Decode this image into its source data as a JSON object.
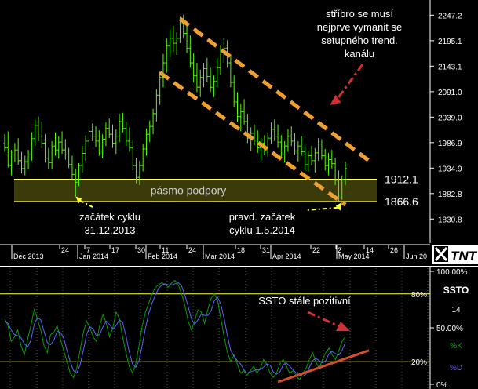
{
  "chart_data": [
    {
      "type": "ohlc",
      "title": "",
      "xlabel": "",
      "ylabel": "",
      "y_ticks": [
        2247.2,
        2195.1,
        2143.1,
        2091.0,
        2039.0,
        1986.9,
        1934.9,
        1882.8,
        1830.8
      ],
      "y_tick_labels": [
        "2247.2",
        "2195.1",
        "2143.1",
        "2091.0",
        "2039.0",
        "1986.9",
        "1934.9",
        "1882.8",
        "1830.8"
      ],
      "ylim": [
        1804,
        2275
      ],
      "x_tick_labels": [
        "Dec 2013",
        "24",
        "7",
        "Jan 2014",
        "17",
        "30",
        "Feb 2014",
        "11",
        "24",
        "Mar 2014",
        "18",
        "31",
        "Apr 2014",
        "22",
        "2",
        "May 2014",
        "14",
        "26",
        "Jun 20"
      ],
      "support_band": {
        "label": "pásmo podpory",
        "upper": 1912.1,
        "lower": 1866.6,
        "upper_label": "1912.1",
        "lower_label": "1866.6"
      },
      "channel": {
        "upper": {
          "start": {
            "bar": 52,
            "value": 2240
          },
          "end": {
            "bar": 108,
            "value": 1950
          }
        },
        "lower": {
          "start": {
            "bar": 46,
            "value": 2130
          },
          "end": {
            "bar": 101,
            "value": 1860
          }
        }
      },
      "annotations": [
        {
          "text": [
            "stříbro se musí",
            "nejprve vymanit se",
            "setupného trend.",
            "kanálu"
          ],
          "target_bar": 96,
          "target_value": 2067
        },
        {
          "text": [
            "začátek cyklu",
            "31.12.2013"
          ],
          "target_bar": 21,
          "target_value": 1877
        },
        {
          "text": [
            "pravd. začátek",
            "cyklu 1.5.2014"
          ],
          "target_bar": 100,
          "target_value": 1862
        }
      ],
      "bars": [
        {
          "o": 1985,
          "h": 2004,
          "l": 1968,
          "c": 1976
        },
        {
          "o": 1976,
          "h": 2010,
          "l": 1936,
          "c": 1940
        },
        {
          "o": 1940,
          "h": 1972,
          "l": 1920,
          "c": 1962
        },
        {
          "o": 1962,
          "h": 1986,
          "l": 1948,
          "c": 1972
        },
        {
          "o": 1972,
          "h": 1996,
          "l": 1942,
          "c": 1950
        },
        {
          "o": 1950,
          "h": 1968,
          "l": 1924,
          "c": 1934
        },
        {
          "o": 1934,
          "h": 1960,
          "l": 1920,
          "c": 1948
        },
        {
          "o": 1948,
          "h": 1972,
          "l": 1932,
          "c": 1962
        },
        {
          "o": 1962,
          "h": 2008,
          "l": 1950,
          "c": 1995
        },
        {
          "o": 1995,
          "h": 2034,
          "l": 1980,
          "c": 2022
        },
        {
          "o": 2022,
          "h": 2040,
          "l": 1990,
          "c": 2000
        },
        {
          "o": 2000,
          "h": 2030,
          "l": 1976,
          "c": 1986
        },
        {
          "o": 1986,
          "h": 2004,
          "l": 1946,
          "c": 1955
        },
        {
          "o": 1955,
          "h": 1976,
          "l": 1932,
          "c": 1946
        },
        {
          "o": 1946,
          "h": 1990,
          "l": 1932,
          "c": 1980
        },
        {
          "o": 1980,
          "h": 2008,
          "l": 1960,
          "c": 1972
        },
        {
          "o": 1972,
          "h": 2000,
          "l": 1954,
          "c": 1988
        },
        {
          "o": 1988,
          "h": 2010,
          "l": 1964,
          "c": 1972
        },
        {
          "o": 1972,
          "h": 1994,
          "l": 1952,
          "c": 1962
        },
        {
          "o": 1962,
          "h": 1976,
          "l": 1935,
          "c": 1942
        },
        {
          "o": 1942,
          "h": 1960,
          "l": 1912,
          "c": 1922
        },
        {
          "o": 1922,
          "h": 1934,
          "l": 1877,
          "c": 1906
        },
        {
          "o": 1906,
          "h": 1945,
          "l": 1898,
          "c": 1940
        },
        {
          "o": 1940,
          "h": 1980,
          "l": 1926,
          "c": 1965
        },
        {
          "o": 1965,
          "h": 2002,
          "l": 1950,
          "c": 1990
        },
        {
          "o": 1990,
          "h": 2024,
          "l": 1978,
          "c": 2010
        },
        {
          "o": 2010,
          "h": 2026,
          "l": 1990,
          "c": 2000
        },
        {
          "o": 2000,
          "h": 2020,
          "l": 1978,
          "c": 1990
        },
        {
          "o": 1990,
          "h": 2012,
          "l": 1960,
          "c": 1970
        },
        {
          "o": 1970,
          "h": 2004,
          "l": 1955,
          "c": 1994
        },
        {
          "o": 1994,
          "h": 2028,
          "l": 1980,
          "c": 2016
        },
        {
          "o": 2016,
          "h": 2036,
          "l": 1996,
          "c": 2004
        },
        {
          "o": 2004,
          "h": 2024,
          "l": 1976,
          "c": 1986
        },
        {
          "o": 1986,
          "h": 2014,
          "l": 1964,
          "c": 2000
        },
        {
          "o": 2000,
          "h": 2046,
          "l": 1988,
          "c": 2030
        },
        {
          "o": 2030,
          "h": 2048,
          "l": 2008,
          "c": 2016
        },
        {
          "o": 2016,
          "h": 2030,
          "l": 1980,
          "c": 1990
        },
        {
          "o": 1990,
          "h": 2018,
          "l": 1968,
          "c": 1976
        },
        {
          "o": 1976,
          "h": 1994,
          "l": 1930,
          "c": 1940
        },
        {
          "o": 1940,
          "h": 1956,
          "l": 1904,
          "c": 1916
        },
        {
          "o": 1916,
          "h": 1950,
          "l": 1900,
          "c": 1940
        },
        {
          "o": 1940,
          "h": 1984,
          "l": 1928,
          "c": 1974
        },
        {
          "o": 1974,
          "h": 2016,
          "l": 1960,
          "c": 2004
        },
        {
          "o": 2004,
          "h": 2032,
          "l": 1988,
          "c": 2020
        },
        {
          "o": 2020,
          "h": 2056,
          "l": 2004,
          "c": 2046
        },
        {
          "o": 2046,
          "h": 2096,
          "l": 2030,
          "c": 2084
        },
        {
          "o": 2084,
          "h": 2132,
          "l": 2064,
          "c": 2120
        },
        {
          "o": 2120,
          "h": 2168,
          "l": 2100,
          "c": 2150
        },
        {
          "o": 2150,
          "h": 2200,
          "l": 2130,
          "c": 2184
        },
        {
          "o": 2184,
          "h": 2218,
          "l": 2162,
          "c": 2200
        },
        {
          "o": 2200,
          "h": 2226,
          "l": 2172,
          "c": 2190
        },
        {
          "o": 2190,
          "h": 2212,
          "l": 2166,
          "c": 2200
        },
        {
          "o": 2200,
          "h": 2244,
          "l": 2190,
          "c": 2230
        },
        {
          "o": 2230,
          "h": 2248,
          "l": 2200,
          "c": 2210
        },
        {
          "o": 2210,
          "h": 2230,
          "l": 2170,
          "c": 2180
        },
        {
          "o": 2180,
          "h": 2206,
          "l": 2140,
          "c": 2150
        },
        {
          "o": 2150,
          "h": 2170,
          "l": 2110,
          "c": 2124
        },
        {
          "o": 2124,
          "h": 2150,
          "l": 2090,
          "c": 2100
        },
        {
          "o": 2100,
          "h": 2136,
          "l": 2080,
          "c": 2120
        },
        {
          "o": 2120,
          "h": 2150,
          "l": 2100,
          "c": 2138
        },
        {
          "o": 2138,
          "h": 2160,
          "l": 2110,
          "c": 2122
        },
        {
          "o": 2122,
          "h": 2140,
          "l": 2090,
          "c": 2100
        },
        {
          "o": 2100,
          "h": 2124,
          "l": 2080,
          "c": 2112
        },
        {
          "o": 2112,
          "h": 2160,
          "l": 2100,
          "c": 2140
        },
        {
          "o": 2140,
          "h": 2186,
          "l": 2126,
          "c": 2170
        },
        {
          "o": 2170,
          "h": 2200,
          "l": 2150,
          "c": 2180
        },
        {
          "o": 2180,
          "h": 2196,
          "l": 2140,
          "c": 2150
        },
        {
          "o": 2150,
          "h": 2166,
          "l": 2100,
          "c": 2110
        },
        {
          "o": 2110,
          "h": 2124,
          "l": 2060,
          "c": 2070
        },
        {
          "o": 2070,
          "h": 2090,
          "l": 2030,
          "c": 2040
        },
        {
          "o": 2040,
          "h": 2066,
          "l": 2010,
          "c": 2050
        },
        {
          "o": 2050,
          "h": 2076,
          "l": 2024,
          "c": 2030
        },
        {
          "o": 2030,
          "h": 2046,
          "l": 1986,
          "c": 1996
        },
        {
          "o": 1996,
          "h": 2018,
          "l": 1970,
          "c": 2006
        },
        {
          "o": 2006,
          "h": 2024,
          "l": 1982,
          "c": 1992
        },
        {
          "o": 1992,
          "h": 2012,
          "l": 1966,
          "c": 1976
        },
        {
          "o": 1976,
          "h": 1996,
          "l": 1950,
          "c": 1986
        },
        {
          "o": 1986,
          "h": 2002,
          "l": 1962,
          "c": 1970
        },
        {
          "o": 1970,
          "h": 2008,
          "l": 1958,
          "c": 1996
        },
        {
          "o": 1996,
          "h": 2028,
          "l": 1984,
          "c": 2014
        },
        {
          "o": 2014,
          "h": 2034,
          "l": 1990,
          "c": 2000
        },
        {
          "o": 2000,
          "h": 2024,
          "l": 1976,
          "c": 1988
        },
        {
          "o": 1988,
          "h": 2002,
          "l": 1954,
          "c": 1962
        },
        {
          "o": 1962,
          "h": 1990,
          "l": 1946,
          "c": 1980
        },
        {
          "o": 1980,
          "h": 2014,
          "l": 1968,
          "c": 2000
        },
        {
          "o": 2000,
          "h": 2020,
          "l": 1980,
          "c": 1990
        },
        {
          "o": 1990,
          "h": 2006,
          "l": 1962,
          "c": 1970
        },
        {
          "o": 1970,
          "h": 1990,
          "l": 1948,
          "c": 1980
        },
        {
          "o": 1980,
          "h": 2000,
          "l": 1960,
          "c": 1968
        },
        {
          "o": 1968,
          "h": 1982,
          "l": 1930,
          "c": 1942
        },
        {
          "o": 1942,
          "h": 1970,
          "l": 1928,
          "c": 1960
        },
        {
          "o": 1960,
          "h": 1980,
          "l": 1940,
          "c": 1950
        },
        {
          "o": 1950,
          "h": 1976,
          "l": 1926,
          "c": 1966
        },
        {
          "o": 1966,
          "h": 1996,
          "l": 1950,
          "c": 1984
        },
        {
          "o": 1984,
          "h": 1994,
          "l": 1952,
          "c": 1960
        },
        {
          "o": 1960,
          "h": 1974,
          "l": 1930,
          "c": 1940
        },
        {
          "o": 1940,
          "h": 1966,
          "l": 1920,
          "c": 1952
        },
        {
          "o": 1952,
          "h": 1972,
          "l": 1934,
          "c": 1944
        },
        {
          "o": 1944,
          "h": 1956,
          "l": 1900,
          "c": 1910
        },
        {
          "o": 1910,
          "h": 1930,
          "l": 1866,
          "c": 1880
        },
        {
          "o": 1880,
          "h": 1920,
          "l": 1870,
          "c": 1912
        },
        {
          "o": 1912,
          "h": 1948,
          "l": 1900,
          "c": 1934
        }
      ]
    },
    {
      "type": "line",
      "title": "SSTO",
      "subtitle": "14",
      "xlabel": "",
      "ylabel": "",
      "ylim": [
        0,
        100
      ],
      "y_tick_labels": [
        "100.00%",
        "50.00%",
        "0%"
      ],
      "levels": [
        80,
        20
      ],
      "level_labels": [
        "80%",
        "20%"
      ],
      "annotation": "SSTO stále pozitivní",
      "trendline": {
        "start": {
          "bar": 81,
          "value": 2
        },
        "end": {
          "bar": 108,
          "value": 30
        }
      },
      "series": [
        {
          "name": "%K",
          "color": "#00a000",
          "values": [
            58,
            52,
            38,
            42,
            48,
            34,
            26,
            40,
            52,
            66,
            58,
            48,
            34,
            28,
            44,
            46,
            52,
            40,
            30,
            20,
            10,
            6,
            14,
            30,
            46,
            56,
            50,
            42,
            38,
            52,
            62,
            54,
            42,
            50,
            64,
            58,
            42,
            28,
            16,
            10,
            18,
            34,
            52,
            64,
            72,
            80,
            86,
            88,
            90,
            88,
            86,
            90,
            92,
            88,
            80,
            70,
            56,
            48,
            56,
            66,
            64,
            54,
            66,
            76,
            80,
            74,
            58,
            42,
            28,
            20,
            26,
            18,
            10,
            12,
            8,
            12,
            16,
            10,
            14,
            22,
            18,
            10,
            6,
            10,
            18,
            22,
            16,
            10,
            12,
            8,
            4,
            10,
            14,
            22,
            28,
            20,
            14,
            22,
            28,
            32,
            26,
            22,
            30,
            38,
            42
          ]
        },
        {
          "name": "%D",
          "color": "#6060ff",
          "values": [
            56,
            54,
            48,
            44,
            43,
            41,
            36,
            33,
            39,
            53,
            59,
            57,
            47,
            37,
            35,
            39,
            47,
            46,
            41,
            30,
            20,
            12,
            10,
            17,
            30,
            44,
            51,
            49,
            43,
            44,
            51,
            56,
            53,
            49,
            52,
            57,
            55,
            43,
            29,
            18,
            15,
            21,
            35,
            50,
            63,
            72,
            79,
            85,
            88,
            89,
            88,
            88,
            89,
            90,
            87,
            79,
            69,
            58,
            53,
            57,
            62,
            61,
            61,
            65,
            74,
            77,
            71,
            58,
            43,
            30,
            25,
            21,
            18,
            13,
            10,
            11,
            12,
            13,
            13,
            15,
            18,
            17,
            11,
            9,
            11,
            17,
            19,
            16,
            13,
            10,
            8,
            7,
            9,
            15,
            21,
            23,
            21,
            19,
            21,
            27,
            29,
            27,
            26,
            30,
            37
          ]
        }
      ]
    }
  ],
  "logo": "TNT"
}
